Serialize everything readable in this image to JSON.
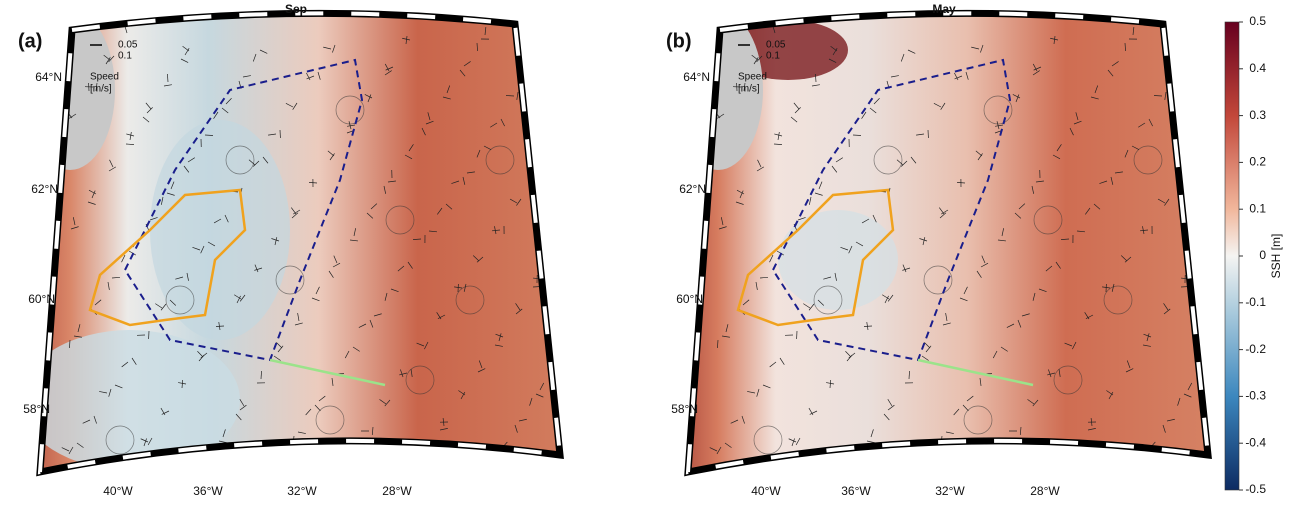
{
  "panels": [
    {
      "label": "(a)",
      "title": "Sep",
      "lat_labels": [
        "64°N",
        "62°N",
        "60°N",
        "58°N"
      ],
      "lon_labels": [
        "40°W",
        "36°W",
        "32°W",
        "28°W"
      ],
      "legend": {
        "values": [
          0.05,
          0.1
        ],
        "title": "Speed",
        "unit": "[m/s]"
      }
    },
    {
      "label": "(b)",
      "title": "May",
      "lat_labels": [
        "64°N",
        "62°N",
        "60°N",
        "58°N"
      ],
      "lon_labels": [
        "40°W",
        "36°W",
        "32°W",
        "28°W"
      ],
      "legend": {
        "values": [
          0.05,
          0.1
        ],
        "title": "Speed",
        "unit": "[m/s]"
      }
    }
  ],
  "colorbar": {
    "label": "SSH [m]",
    "clim": [
      -0.5,
      0.5
    ],
    "ticks": [
      0.5,
      0.4,
      0.3,
      0.2,
      0.1,
      0,
      -0.1,
      -0.2,
      -0.3,
      -0.4,
      -0.5
    ]
  }
}
